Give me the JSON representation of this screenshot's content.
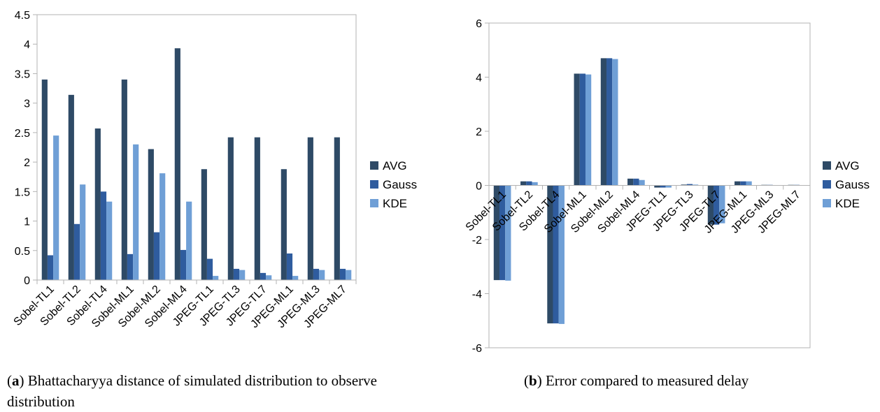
{
  "chart_data": [
    {
      "type": "bar",
      "categories": [
        "Sobel-TL1",
        "Sobel-TL2",
        "Sobel-TL4",
        "Sobel-ML1",
        "Sobel-ML2",
        "Sobel-ML4",
        "JPEG-TL1",
        "JPEG-TL3",
        "JPEG-TL7",
        "JPEG-ML1",
        "JPEG-ML3",
        "JPEG-ML7"
      ],
      "series": [
        {
          "name": "AVG",
          "color": "#2e4a66",
          "values": [
            3.4,
            3.14,
            2.57,
            3.4,
            2.22,
            3.93,
            1.88,
            2.42,
            2.42,
            1.88,
            2.42,
            2.42
          ]
        },
        {
          "name": "Gauss",
          "color": "#2f5c9e",
          "values": [
            0.42,
            0.95,
            1.5,
            0.44,
            0.81,
            0.51,
            0.36,
            0.19,
            0.12,
            0.45,
            0.19,
            0.19
          ]
        },
        {
          "name": "KDE",
          "color": "#6f9fd6",
          "values": [
            2.45,
            1.62,
            1.33,
            2.3,
            1.81,
            1.33,
            0.07,
            0.17,
            0.08,
            0.07,
            0.17,
            0.17
          ]
        }
      ],
      "ylim": [
        0,
        4.5
      ],
      "yticks": [
        "0",
        "0.5",
        "1",
        "1.5",
        "2",
        "2.5",
        "3",
        "3.5",
        "4",
        "4.5"
      ],
      "grid": false,
      "legend_position": "right"
    },
    {
      "type": "bar",
      "categories": [
        "Sobel-TL1",
        "Sobel-TL2",
        "Sobel-TL4",
        "Sobel-ML1",
        "Sobel-ML2",
        "Sobel-ML4",
        "JPEG-TL1",
        "JPEG-TL3",
        "JPEG-TL7",
        "JPEG-ML1",
        "JPEG-ML3",
        "JPEG-ML7"
      ],
      "series": [
        {
          "name": "AVG",
          "color": "#2e4a66",
          "values": [
            -3.5,
            0.15,
            -5.1,
            4.13,
            4.7,
            0.25,
            -0.08,
            0.03,
            -1.45,
            0.15,
            0.02,
            0.02
          ]
        },
        {
          "name": "Gauss",
          "color": "#2f5c9e",
          "values": [
            -3.5,
            0.15,
            -5.1,
            4.13,
            4.7,
            0.25,
            -0.08,
            0.05,
            -1.45,
            0.15,
            0.02,
            0.02
          ]
        },
        {
          "name": "KDE",
          "color": "#6f9fd6",
          "values": [
            -3.52,
            0.12,
            -5.12,
            4.1,
            4.67,
            0.2,
            -0.08,
            0.03,
            -1.4,
            0.15,
            0.01,
            0.01
          ]
        }
      ],
      "ylim": [
        -6,
        6
      ],
      "yticks": [
        "-6",
        "-4",
        "-2",
        "0",
        "2",
        "4",
        "6"
      ],
      "grid": false,
      "legend_position": "right"
    }
  ],
  "captions": {
    "a_label": "a",
    "a_text": " Bhattacharyya distance of simulated distribution to observe distribution",
    "b_label": "b",
    "b_text": " Error compared to measured delay"
  }
}
